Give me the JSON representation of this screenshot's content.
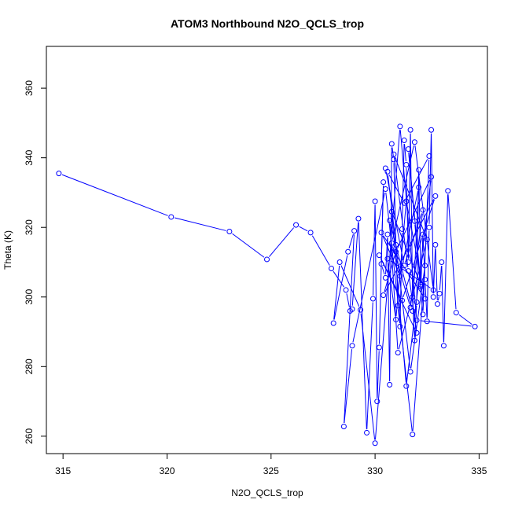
{
  "chart_data": {
    "type": "line",
    "title": "ATOM3 Northbound N2O_QCLS_trop",
    "xlabel": "N2O_QCLS_trop",
    "ylabel": "Theta (K)",
    "xlim": [
      314.2,
      335.4
    ],
    "ylim": [
      255,
      372
    ],
    "xticks": [
      315,
      320,
      325,
      330,
      335
    ],
    "yticks": [
      260,
      280,
      300,
      320,
      340,
      360
    ],
    "grid": false,
    "color": "#0000ff",
    "series": [
      {
        "x": [
          314.8,
          320.2,
          323.0,
          324.8,
          326.2,
          326.9,
          327.9,
          328.6,
          328.8,
          328.9,
          329.2,
          329.6,
          329.9,
          330.0,
          330.1,
          330.2,
          330.4,
          330.3,
          330.5,
          330.6,
          330.7,
          330.8,
          330.9,
          331.0,
          331.1,
          331.2,
          331.3,
          331.4,
          331.5,
          331.6,
          331.7,
          331.8,
          331.9,
          332.0,
          332.1,
          332.2,
          332.3,
          332.4,
          332.5,
          332.6,
          332.7,
          332.8,
          332.9,
          333.0,
          333.1,
          333.2,
          333.3,
          333.5,
          333.9,
          334.8,
          332.0,
          331.2,
          330.0,
          329.3,
          328.3,
          328.0,
          328.7,
          329.0,
          328.5,
          328.9,
          330.5,
          331.8,
          332.4,
          331.7,
          330.6,
          331.4,
          332.6,
          332.3,
          331.9,
          331.6,
          332.2,
          330.8,
          331.5,
          332.7,
          331.0,
          330.4,
          332.9,
          331.3,
          330.2,
          332.0,
          331.6,
          330.9,
          332.5,
          331.1,
          330.7,
          331.8,
          332.1,
          331.2,
          330.3,
          332.4,
          331.5,
          331.0,
          330.6,
          332.8,
          331.9,
          330.8,
          331.7,
          332.3,
          331.4,
          330.5
        ],
        "y": [
          335.5,
          323.0,
          318.8,
          310.8,
          320.7,
          318.5,
          308.2,
          302.0,
          296.0,
          296.5,
          322.5,
          261.0,
          299.5,
          327.5,
          270.0,
          285.5,
          333.0,
          309.5,
          305.5,
          318.0,
          274.8,
          344.0,
          339.5,
          315.0,
          297.5,
          291.5,
          319.5,
          345.0,
          338.0,
          310.0,
          348.0,
          300.0,
          287.5,
          298.5,
          336.5,
          303.0,
          318.0,
          305.0,
          293.0,
          320.0,
          348.0,
          300.0,
          315.0,
          298.0,
          301.0,
          310.0,
          286.0,
          330.5,
          295.5,
          291.5,
          293.3,
          349.0,
          258.0,
          296.3,
          310.0,
          292.5,
          313.0,
          319.0,
          262.8,
          286.0,
          331.0,
          260.5,
          309.0,
          278.5,
          336.0,
          327.0,
          340.5,
          295.0,
          321.8,
          342.5,
          303.5,
          324.5,
          274.4,
          334.5,
          313.0,
          300.5,
          329.0,
          299.0,
          312.0,
          289.7,
          307.5,
          341.0,
          316.5,
          284.0,
          322.0,
          296.0,
          331.5,
          306.0,
          318.5,
          299.5,
          327.5,
          293.5,
          311.0,
          302.0,
          344.5,
          315.5,
          297.0,
          325.0,
          309.0,
          337.0
        ]
      }
    ]
  }
}
